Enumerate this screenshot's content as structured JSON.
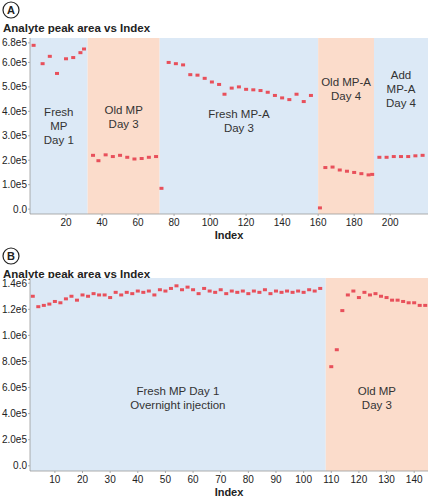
{
  "chart_data": [
    {
      "type": "scatter",
      "panel": "A",
      "title": "Analyte peak area vs Index",
      "x_label": "Index",
      "color": "#e8505b",
      "marker": "square",
      "xlim": [
        0,
        221
      ],
      "xticks": [
        20,
        40,
        60,
        80,
        100,
        120,
        140,
        160,
        180,
        200
      ],
      "ylim": [
        -20000,
        700000
      ],
      "yticks": [
        {
          "value": 0,
          "label": "0.0"
        },
        {
          "value": 100000,
          "label": "1.0e5"
        },
        {
          "value": 200000,
          "label": "2.0e5"
        },
        {
          "value": 300000,
          "label": "3.0e5"
        },
        {
          "value": 400000,
          "label": "4.0e5"
        },
        {
          "value": 500000,
          "label": "5.0e5"
        },
        {
          "value": 600000,
          "label": "6.0e5"
        },
        {
          "value": 680000,
          "label": "6.8e5"
        }
      ],
      "grid": false,
      "annotations": [
        {
          "lines": [
            "Fresh",
            "MP",
            "Day 1"
          ],
          "x_start": 0,
          "x_end": 32,
          "color": "#dce9f6"
        },
        {
          "lines": [
            "Old MP",
            "Day 3"
          ],
          "x_start": 32,
          "x_end": 72,
          "color": "#fbdccb"
        },
        {
          "lines": [
            "Fresh MP-A",
            "Day 3"
          ],
          "x_start": 72,
          "x_end": 160,
          "color": "#dce9f6"
        },
        {
          "lines": [
            "Old MP-A",
            "Day 4"
          ],
          "x_start": 160,
          "x_end": 191,
          "color": "#fbdccb"
        },
        {
          "lines": [
            "Add",
            "MP-A",
            "Day 4"
          ],
          "x_start": 191,
          "x_end": 221,
          "color": "#dce9f6"
        }
      ],
      "x": [
        2,
        7,
        11,
        15,
        20,
        24,
        28,
        30,
        35,
        38,
        42,
        46,
        50,
        54,
        58,
        62,
        66,
        70,
        73,
        77,
        81,
        85,
        89,
        93,
        97,
        101,
        105,
        108,
        112,
        116,
        120,
        124,
        128,
        132,
        136,
        140,
        144,
        148,
        152,
        156,
        161,
        164,
        168,
        172,
        176,
        180,
        184,
        188,
        190,
        194,
        198,
        202,
        206,
        210,
        214,
        218
      ],
      "values": [
        670000,
        595000,
        625000,
        555000,
        615000,
        620000,
        640000,
        655000,
        220000,
        198000,
        222000,
        215000,
        220000,
        212000,
        205000,
        207000,
        212000,
        215000,
        85000,
        600000,
        595000,
        590000,
        550000,
        548000,
        535000,
        520000,
        510000,
        470000,
        495000,
        500000,
        490000,
        488000,
        485000,
        478000,
        465000,
        455000,
        448000,
        470000,
        440000,
        465000,
        5000,
        170000,
        172000,
        160000,
        155000,
        150000,
        145000,
        140000,
        142000,
        212000,
        212000,
        215000,
        215000,
        215000,
        218000,
        220000
      ]
    },
    {
      "type": "scatter",
      "panel": "B",
      "title": "Analyte peak area vs Index",
      "x_label": "Index",
      "color": "#e8505b",
      "marker": "square",
      "xlim": [
        1,
        145
      ],
      "xticks": [
        10,
        20,
        30,
        40,
        50,
        60,
        70,
        80,
        90,
        100,
        110,
        120,
        130,
        140
      ],
      "ylim": [
        -40000,
        1440000
      ],
      "yticks": [
        {
          "value": 0,
          "label": "0.0"
        },
        {
          "value": 200000,
          "label": "2.0e5"
        },
        {
          "value": 400000,
          "label": "4.0e5"
        },
        {
          "value": 600000,
          "label": "6.0e5"
        },
        {
          "value": 800000,
          "label": "8.0e5"
        },
        {
          "value": 1000000,
          "label": "1.0e6"
        },
        {
          "value": 1200000,
          "label": "1.2e6"
        },
        {
          "value": 1400000,
          "label": "1.4e6"
        }
      ],
      "grid": false,
      "annotations": [
        {
          "lines": [
            "Fresh MP Day 1",
            "Overnight injection"
          ],
          "x_start": 1,
          "x_end": 108,
          "color": "#dce9f6"
        },
        {
          "lines": [
            "Old MP",
            "Day 3"
          ],
          "x_start": 108,
          "x_end": 145,
          "color": "#fbdccb"
        }
      ],
      "x": [
        2,
        4,
        6,
        8,
        10,
        12,
        14,
        16,
        18,
        20,
        22,
        24,
        26,
        28,
        30,
        32,
        34,
        36,
        38,
        40,
        42,
        44,
        46,
        48,
        50,
        52,
        54,
        56,
        58,
        60,
        62,
        64,
        66,
        68,
        70,
        72,
        74,
        76,
        78,
        80,
        82,
        84,
        86,
        88,
        90,
        92,
        94,
        96,
        98,
        100,
        102,
        104,
        106,
        110,
        112,
        114,
        116,
        118,
        120,
        122,
        124,
        126,
        128,
        130,
        132,
        134,
        136,
        138,
        140,
        142,
        144
      ],
      "values": [
        1300000,
        1220000,
        1230000,
        1240000,
        1260000,
        1250000,
        1280000,
        1300000,
        1270000,
        1310000,
        1300000,
        1320000,
        1310000,
        1310000,
        1290000,
        1330000,
        1310000,
        1330000,
        1320000,
        1340000,
        1330000,
        1340000,
        1310000,
        1350000,
        1340000,
        1360000,
        1380000,
        1350000,
        1370000,
        1350000,
        1320000,
        1360000,
        1340000,
        1330000,
        1350000,
        1320000,
        1340000,
        1330000,
        1340000,
        1320000,
        1340000,
        1330000,
        1350000,
        1320000,
        1340000,
        1330000,
        1340000,
        1330000,
        1340000,
        1330000,
        1350000,
        1340000,
        1360000,
        760000,
        890000,
        1190000,
        1310000,
        1340000,
        1290000,
        1330000,
        1310000,
        1320000,
        1300000,
        1290000,
        1270000,
        1270000,
        1260000,
        1250000,
        1250000,
        1230000,
        1230000
      ]
    }
  ]
}
